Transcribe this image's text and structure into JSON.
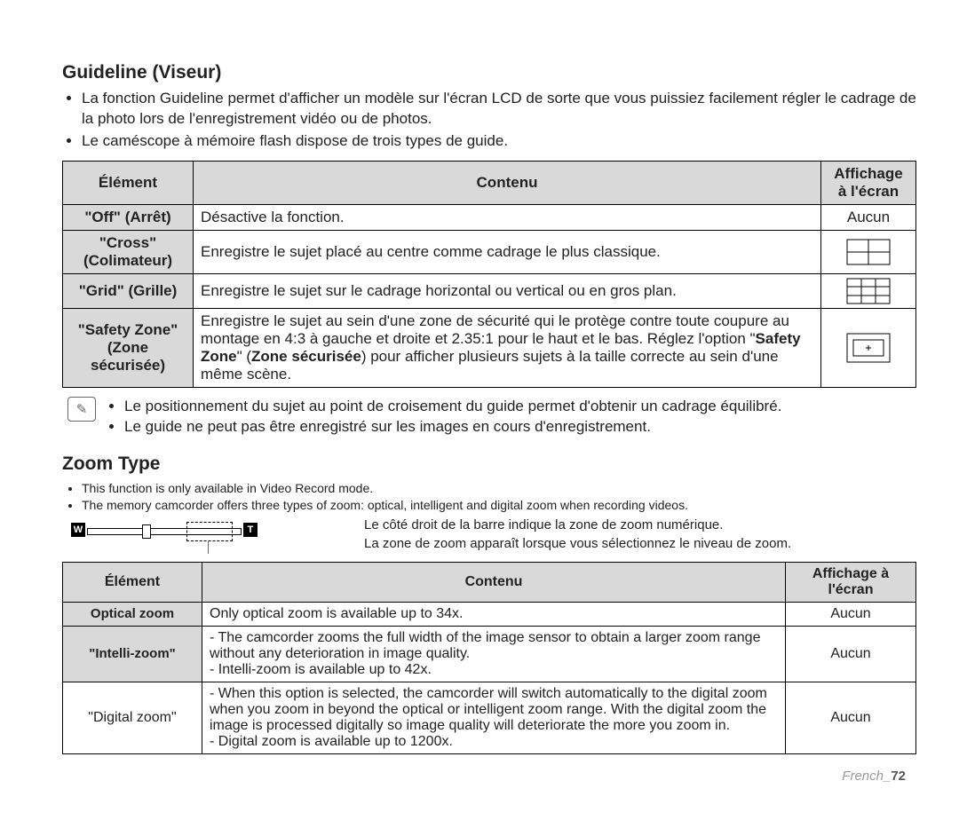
{
  "section1": {
    "title": "Guideline (Viseur)",
    "bullets": [
      "La fonction Guideline permet d'afficher un modèle sur l'écran LCD de sorte que vous puissiez facilement régler le cadrage de la photo lors de l'enregistrement vidéo ou de photos.",
      "Le caméscope à mémoire flash dispose de trois types de guide."
    ],
    "headers": {
      "col1": "Élément",
      "col2": "Contenu",
      "col3": "Affichage à l'écran"
    },
    "rows": [
      {
        "el": "\"Off\" (Arrêt)",
        "content": "Désactive la fonction.",
        "icon": "none",
        "display": "Aucun"
      },
      {
        "el": "\"Cross\" (Colimateur)",
        "content": "Enregistre le sujet placé au centre comme cadrage le plus classique.",
        "icon": "cross"
      },
      {
        "el": "\"Grid\" (Grille)",
        "content": "Enregistre le sujet sur le cadrage horizontal ou vertical ou en gros plan.",
        "icon": "grid"
      },
      {
        "el": "\"Safety Zone\" (Zone sécurisée)",
        "content_html": "Enregistre le sujet au sein d'une zone de sécurité qui le protège contre toute coupure au montage en 4:3 à gauche et droite et 2.35:1 pour le haut et le bas. Réglez l'option \"<b>Safety Zone</b>\" (<b>Zone sécurisée</b>) pour afficher plusieurs sujets à la taille correcte au sein d'une même scène.",
        "icon": "safety"
      }
    ],
    "notes": [
      "Le positionnement du sujet au point de croisement du guide permet d'obtenir un cadrage équilibré.",
      "Le guide ne peut pas être enregistré sur les images en cours d'enregistrement."
    ]
  },
  "section2": {
    "title": "Zoom Type",
    "bullets": [
      "This function is only available in Video Record mode.",
      "The memory camcorder offers three types of zoom: optical, intelligent and digital zoom when recording videos."
    ],
    "diagram": {
      "left_label": "W",
      "right_label": "T",
      "desc_line1": "Le côté droit de la barre indique la zone de zoom numérique.",
      "desc_line2": "La zone de zoom apparaît lorsque vous sélectionnez le niveau de zoom."
    },
    "headers": {
      "col1": "Élément",
      "col2": "Contenu",
      "col3": "Affichage à l'écran"
    },
    "rows": [
      {
        "el": "Optical zoom",
        "bold": true,
        "content": "Only optical zoom is available up to 34x.",
        "display": "Aucun"
      },
      {
        "el": "\"Intelli-zoom\"",
        "bold": true,
        "content": "- The camcorder zooms the full width of the image sensor to obtain a larger zoom range without any deterioration in image quality.\n- Intelli-zoom is available up to 42x.",
        "display": "Aucun"
      },
      {
        "el": "\"Digital zoom\"",
        "bold": false,
        "content": "- When this option is selected, the camcorder will switch automatically to the digital zoom when you zoom in beyond the optical or intelligent zoom range. With the digital zoom the image is processed digitally so image quality will deteriorate the more you zoom in.\n- Digital zoom is available up to 1200x.",
        "display": "Aucun"
      }
    ]
  },
  "footer": {
    "text": "French_",
    "page": "72"
  },
  "colors": {
    "header_bg": "#d9d9d9",
    "border": "#000000",
    "text": "#222222"
  }
}
